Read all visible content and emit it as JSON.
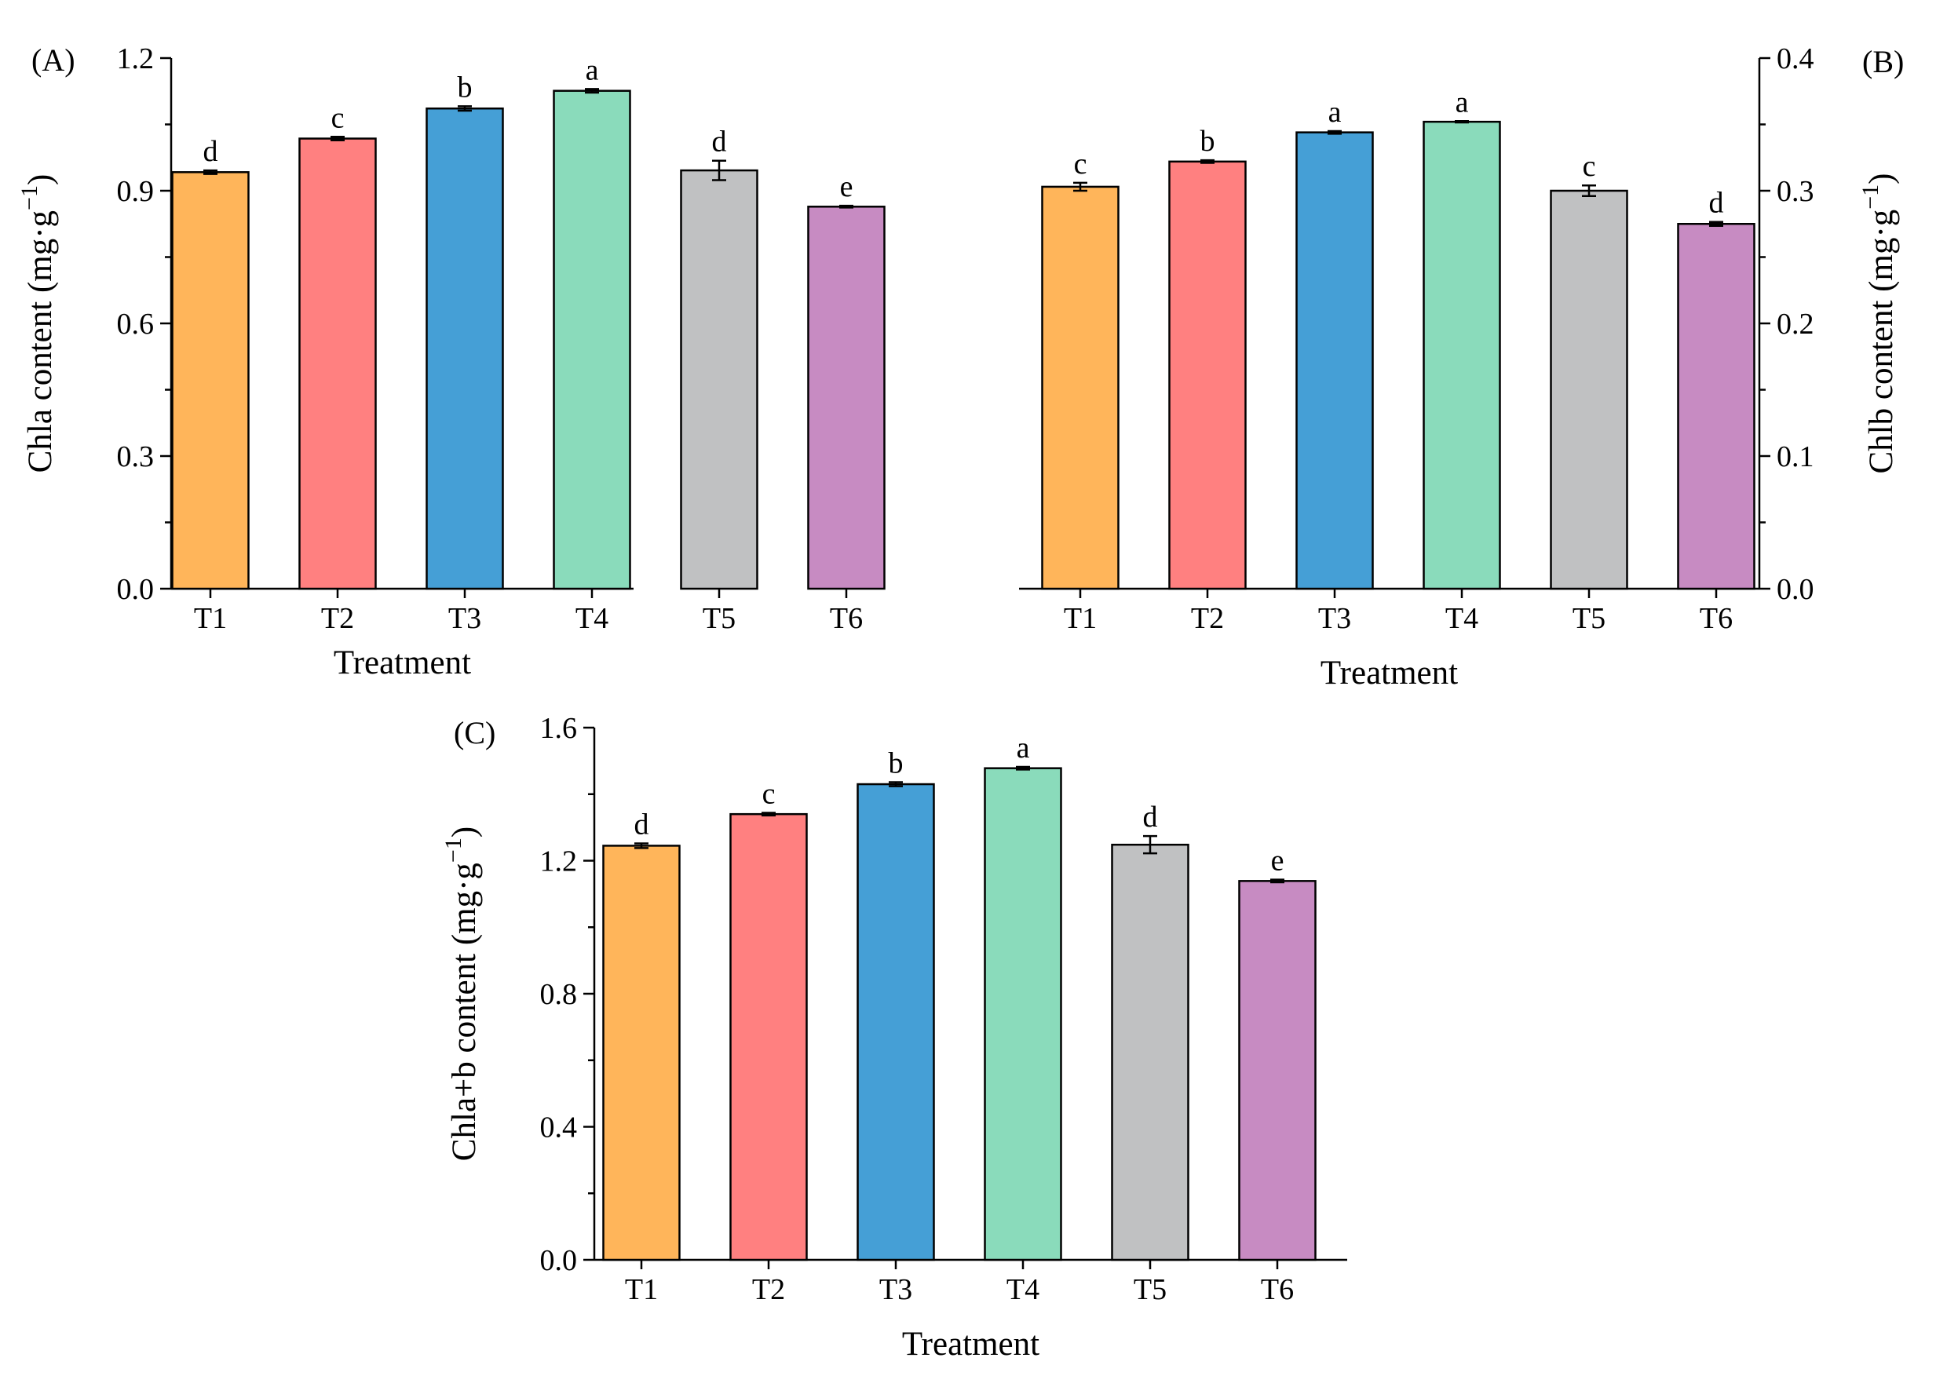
{
  "figure": {
    "colors": [
      "#FFB55A",
      "#FF8080",
      "#459FD6",
      "#8ADBBB",
      "#C0C1C2",
      "#C78BC2"
    ],
    "stroke": "#000000"
  },
  "chart_data": [
    {
      "type": "bar",
      "panel_label": "(A)",
      "title": "",
      "xlabel": "Treatment",
      "ylabel": "Chla content (mg·g",
      "ylabel_sup": "−1",
      "ylabel_close": ")",
      "categories": [
        "T1",
        "T2",
        "T3",
        "T4",
        "T5",
        "T6"
      ],
      "values": [
        0.942,
        1.018,
        1.086,
        1.126,
        0.946,
        0.864
      ],
      "errors": [
        0.004,
        0.004,
        0.005,
        0.004,
        0.022,
        0.002
      ],
      "letters": [
        "d",
        "c",
        "b",
        "a",
        "d",
        "e"
      ],
      "ylim": [
        0,
        1.2
      ],
      "yticks": [
        0.0,
        0.3,
        0.6,
        0.9,
        1.2
      ],
      "ytick_labels": [
        "0.0",
        "0.3",
        "0.6",
        "0.9",
        "1.2"
      ],
      "axis_side": "left"
    },
    {
      "type": "bar",
      "panel_label": "(B)",
      "title": "",
      "xlabel": "Treatment",
      "ylabel": "Chlb content (mg·g",
      "ylabel_sup": "−1",
      "ylabel_close": ")",
      "categories": [
        "T1",
        "T2",
        "T3",
        "T4",
        "T5",
        "T6"
      ],
      "values": [
        0.303,
        0.322,
        0.344,
        0.352,
        0.3,
        0.275
      ],
      "errors": [
        0.003,
        0.001,
        0.001,
        0.0005,
        0.004,
        0.0015
      ],
      "letters": [
        "c",
        "b",
        "a",
        "a",
        "c",
        "d"
      ],
      "ylim": [
        0,
        0.4
      ],
      "yticks": [
        0.0,
        0.1,
        0.2,
        0.3,
        0.4
      ],
      "ytick_labels": [
        "0.0",
        "0.1",
        "0.2",
        "0.3",
        "0.4"
      ],
      "axis_side": "right"
    },
    {
      "type": "bar",
      "panel_label": "(C)",
      "title": "",
      "xlabel": "Treatment",
      "ylabel": "Chla+b content (mg·g",
      "ylabel_sup": "−1",
      "ylabel_close": ")",
      "categories": [
        "T1",
        "T2",
        "T3",
        "T4",
        "T5",
        "T6"
      ],
      "values": [
        1.245,
        1.34,
        1.43,
        1.478,
        1.248,
        1.139
      ],
      "errors": [
        0.007,
        0.004,
        0.006,
        0.004,
        0.026,
        0.004
      ],
      "letters": [
        "d",
        "c",
        "b",
        "a",
        "d",
        "e"
      ],
      "ylim": [
        0,
        1.6
      ],
      "yticks": [
        0.0,
        0.4,
        0.8,
        1.2,
        1.6
      ],
      "ytick_labels": [
        "0.0",
        "0.4",
        "0.8",
        "1.2",
        "1.6"
      ],
      "axis_side": "left"
    }
  ]
}
